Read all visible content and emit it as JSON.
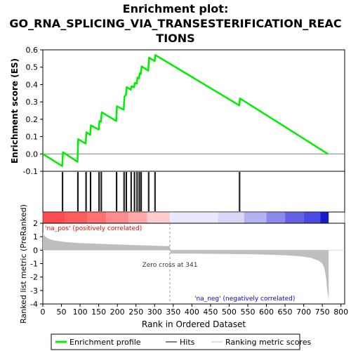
{
  "chart_data": {
    "type": "line",
    "title_lines": [
      "Enrichment plot:",
      "GO_RNA_SPLICING_VIA_TRANSESTERIFICATION_REAC",
      "TIONS"
    ],
    "xlabel": "Rank in Ordered Dataset",
    "es_panel": {
      "ylabel": "Enrichment score (ES)",
      "ylim": [
        -0.1,
        0.6
      ],
      "yticks": [
        -0.1,
        0.0,
        0.1,
        0.2,
        0.3,
        0.4,
        0.5,
        0.6
      ],
      "ytick_labels": [
        "-0.1",
        "0.0",
        "0.1",
        "0.2",
        "0.3",
        "0.4",
        "0.5",
        "0.6"
      ],
      "line_color": "#00ee00",
      "points": [
        [
          0,
          0.0
        ],
        [
          52,
          -0.07
        ],
        [
          54,
          0.01
        ],
        [
          93,
          -0.045
        ],
        [
          95,
          0.085
        ],
        [
          115,
          0.06
        ],
        [
          117,
          0.125
        ],
        [
          127,
          0.11
        ],
        [
          129,
          0.165
        ],
        [
          150,
          0.14
        ],
        [
          152,
          0.19
        ],
        [
          156,
          0.185
        ],
        [
          158,
          0.24
        ],
        [
          197,
          0.19
        ],
        [
          199,
          0.275
        ],
        [
          217,
          0.255
        ],
        [
          219,
          0.33
        ],
        [
          223,
          0.34
        ],
        [
          225,
          0.385
        ],
        [
          236,
          0.37
        ],
        [
          238,
          0.39
        ],
        [
          245,
          0.385
        ],
        [
          247,
          0.41
        ],
        [
          252,
          0.405
        ],
        [
          254,
          0.44
        ],
        [
          258,
          0.435
        ],
        [
          260,
          0.465
        ],
        [
          263,
          0.46
        ],
        [
          265,
          0.505
        ],
        [
          283,
          0.48
        ],
        [
          285,
          0.555
        ],
        [
          300,
          0.535
        ],
        [
          302,
          0.57
        ],
        [
          527,
          0.28
        ],
        [
          529,
          0.32
        ],
        [
          765,
          0.0
        ]
      ]
    },
    "hits": [
      52,
      54,
      93,
      95,
      115,
      117,
      127,
      129,
      150,
      152,
      156,
      158,
      197,
      199,
      217,
      219,
      223,
      225,
      236,
      238,
      245,
      247,
      252,
      254,
      258,
      260,
      263,
      265,
      283,
      285,
      300,
      302,
      527,
      529
    ],
    "metric_panel": {
      "ylabel": "Ranked list metric (PreRanked)",
      "ylim": [
        -4,
        2
      ],
      "yticks": [
        2,
        1,
        0,
        -1,
        -2,
        -3,
        -4
      ],
      "ytick_labels": [
        "2",
        "1",
        "0",
        "-1",
        "-2",
        "-3",
        "-4"
      ],
      "zero_cross": 341,
      "zero_cross_label": "Zero cross at 341",
      "pos_label": "'na_pos' (positively correlated)",
      "neg_label": "'na_neg' (negatively correlated)",
      "pos_label_color": "#ff0000",
      "neg_label_color": "#0000ff",
      "fill_color": "#bebebe",
      "profile": [
        [
          0,
          1.3
        ],
        [
          5,
          1.05
        ],
        [
          15,
          0.85
        ],
        [
          30,
          0.72
        ],
        [
          60,
          0.6
        ],
        [
          100,
          0.53
        ],
        [
          150,
          0.47
        ],
        [
          200,
          0.42
        ],
        [
          250,
          0.37
        ],
        [
          300,
          0.33
        ],
        [
          341,
          0.3
        ],
        [
          342,
          -0.25
        ],
        [
          400,
          -0.26
        ],
        [
          450,
          -0.27
        ],
        [
          500,
          -0.28
        ],
        [
          550,
          -0.3
        ],
        [
          600,
          -0.33
        ],
        [
          650,
          -0.38
        ],
        [
          690,
          -0.45
        ],
        [
          720,
          -0.58
        ],
        [
          740,
          -0.78
        ],
        [
          750,
          -1.0
        ],
        [
          755,
          -1.3
        ],
        [
          758,
          -1.7
        ],
        [
          761,
          -2.3
        ],
        [
          763,
          -2.9
        ],
        [
          765,
          -3.3
        ],
        [
          767,
          -3.7
        ]
      ]
    },
    "xlim": [
      0,
      810
    ],
    "xticks": [
      0,
      50,
      100,
      150,
      200,
      250,
      300,
      350,
      400,
      450,
      500,
      550,
      600,
      650,
      700,
      750,
      800
    ],
    "xtick_labels": [
      "0",
      "50",
      "100",
      "150",
      "200",
      "250",
      "300",
      "350",
      "400",
      "450",
      "500",
      "550",
      "600",
      "650",
      "700",
      "750",
      "800"
    ],
    "color_bar": [
      {
        "from": 0,
        "to": 60,
        "color": "#ff4d4d"
      },
      {
        "from": 60,
        "to": 120,
        "color": "#ff5c5c"
      },
      {
        "from": 120,
        "to": 170,
        "color": "#ff7070"
      },
      {
        "from": 170,
        "to": 230,
        "color": "#ff8c8c"
      },
      {
        "from": 230,
        "to": 280,
        "color": "#ffa8a8"
      },
      {
        "from": 280,
        "to": 341,
        "color": "#ffcccc"
      },
      {
        "from": 341,
        "to": 470,
        "color": "#e9e9fb"
      },
      {
        "from": 470,
        "to": 540,
        "color": "#d7d7f7"
      },
      {
        "from": 540,
        "to": 600,
        "color": "#b3b3f2"
      },
      {
        "from": 600,
        "to": 650,
        "color": "#8a8aec"
      },
      {
        "from": 650,
        "to": 700,
        "color": "#6363e6"
      },
      {
        "from": 700,
        "to": 745,
        "color": "#4a4ae0"
      },
      {
        "from": 745,
        "to": 767,
        "color": "#1c1cc6"
      }
    ],
    "legend": [
      {
        "label": "Enrichment profile",
        "color": "#00ee00",
        "kind": "thick-line"
      },
      {
        "label": "Hits",
        "color": "#000000",
        "kind": "thin-line"
      },
      {
        "label": "Ranking metric scores",
        "color": "#bebebe",
        "kind": "thin-line"
      }
    ]
  }
}
